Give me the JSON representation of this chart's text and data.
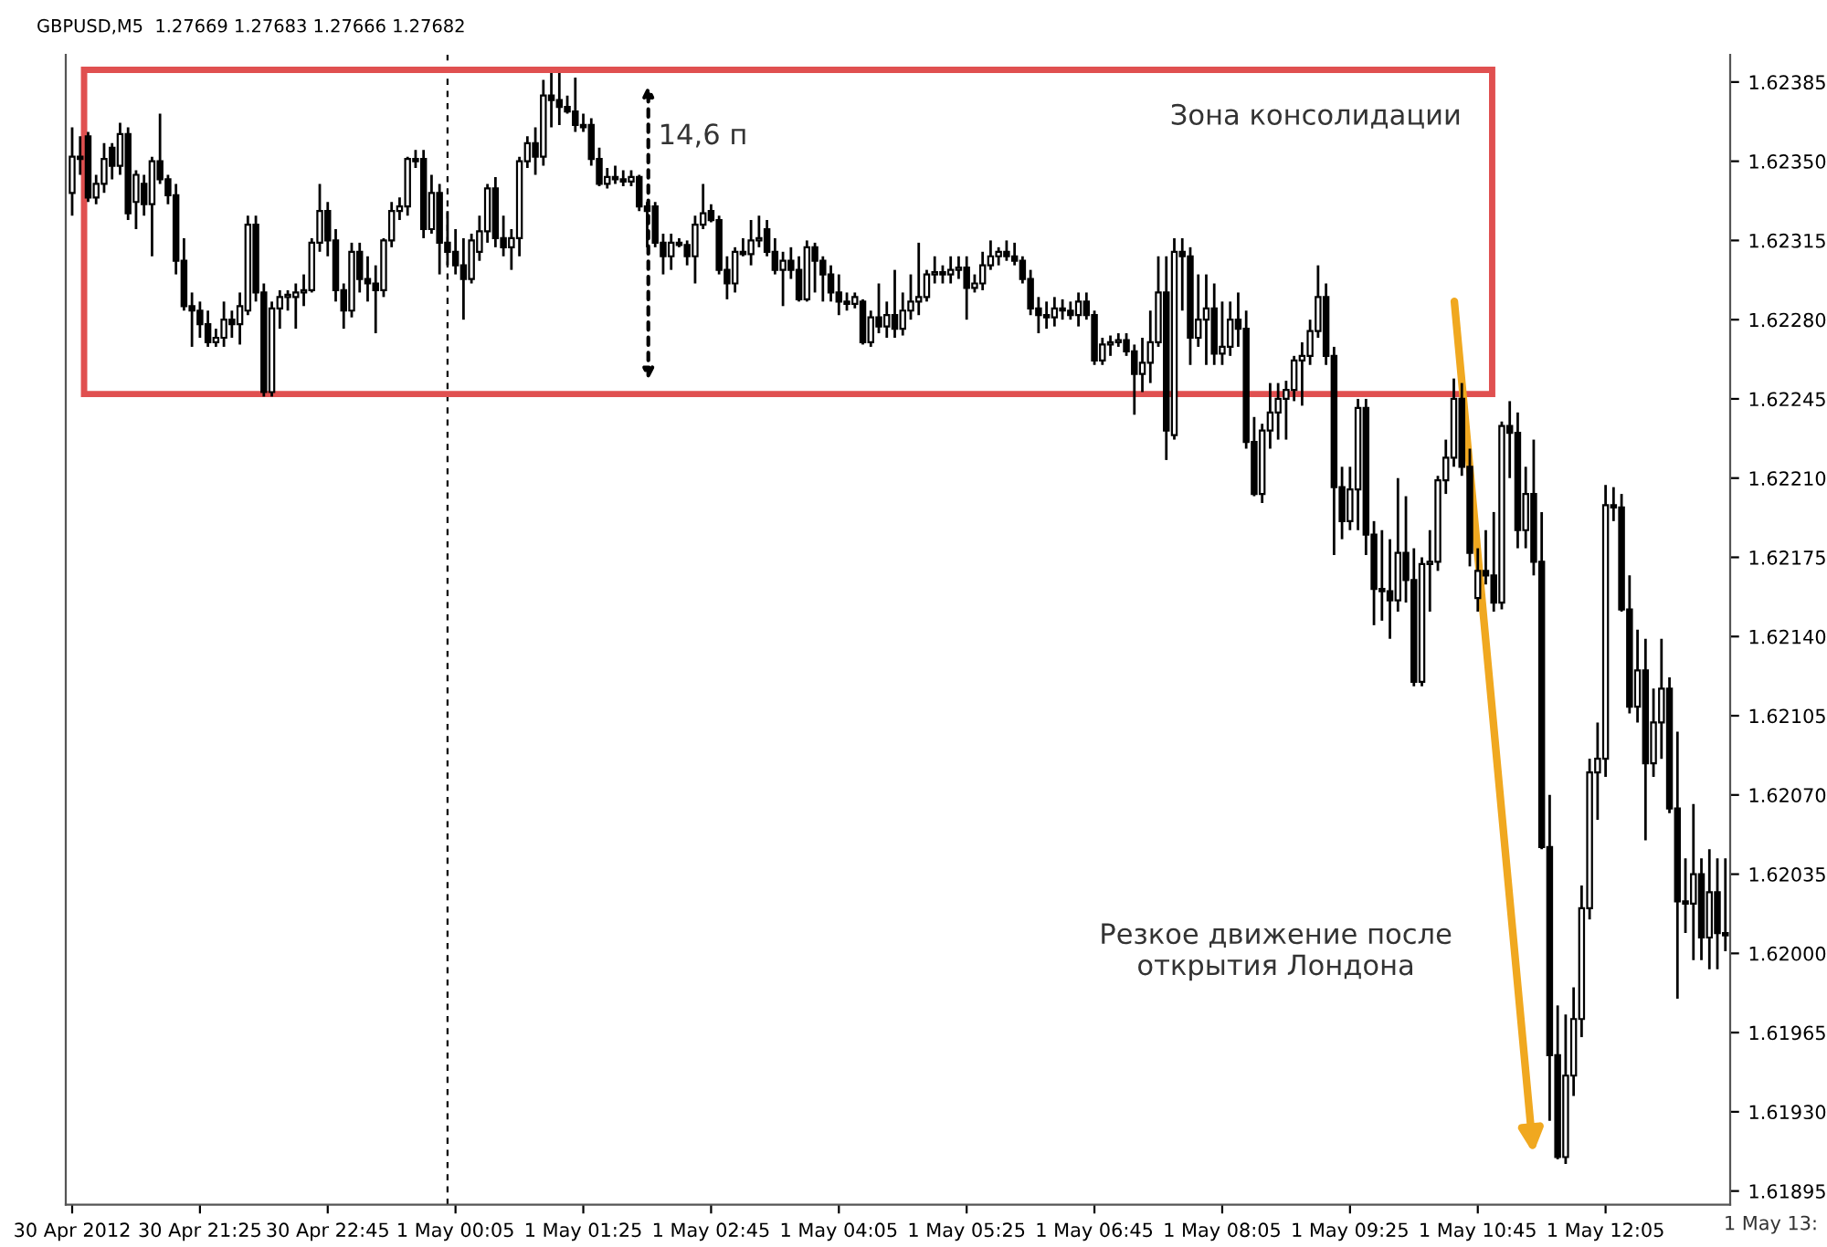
{
  "chart_data": {
    "type": "candlestick",
    "title": "GBPUSD,M5  1.27669 1.27683 1.27666 1.27682",
    "x": [
      "2012-04-30T20:05",
      "2012-04-30T20:10",
      "2012-04-30T20:15",
      "2012-04-30T20:20",
      "2012-04-30T20:25",
      "2012-04-30T20:30",
      "2012-04-30T20:35",
      "2012-04-30T20:40",
      "2012-04-30T20:45",
      "2012-04-30T20:50",
      "2012-04-30T20:55",
      "2012-04-30T21:00",
      "2012-04-30T21:05",
      "2012-04-30T21:10",
      "2012-04-30T21:15",
      "2012-04-30T21:20",
      "2012-04-30T21:25",
      "2012-04-30T21:30",
      "2012-04-30T21:35",
      "2012-04-30T21:40",
      "2012-04-30T21:45",
      "2012-04-30T21:50",
      "2012-04-30T21:55",
      "2012-04-30T22:00",
      "2012-04-30T22:05",
      "2012-04-30T22:10",
      "2012-04-30T22:15",
      "2012-04-30T22:20",
      "2012-04-30T22:25",
      "2012-04-30T22:30",
      "2012-04-30T22:35",
      "2012-04-30T22:40",
      "2012-04-30T22:45",
      "2012-04-30T22:50",
      "2012-04-30T22:55",
      "2012-04-30T23:00",
      "2012-04-30T23:05",
      "2012-04-30T23:10",
      "2012-04-30T23:15",
      "2012-04-30T23:20",
      "2012-04-30T23:25",
      "2012-04-30T23:30",
      "2012-04-30T23:35",
      "2012-04-30T23:40",
      "2012-04-30T23:45",
      "2012-04-30T23:50",
      "2012-04-30T23:55",
      "2012-05-01T00:00",
      "2012-05-01T00:05",
      "2012-05-01T00:10",
      "2012-05-01T00:15",
      "2012-05-01T00:20",
      "2012-05-01T00:25",
      "2012-05-01T00:30",
      "2012-05-01T00:35",
      "2012-05-01T00:40",
      "2012-05-01T00:45",
      "2012-05-01T00:50",
      "2012-05-01T00:55",
      "2012-05-01T01:00",
      "2012-05-01T01:05",
      "2012-05-01T01:10",
      "2012-05-01T01:15",
      "2012-05-01T01:20",
      "2012-05-01T01:25",
      "2012-05-01T01:30",
      "2012-05-01T01:35",
      "2012-05-01T01:40",
      "2012-05-01T01:45",
      "2012-05-01T01:50",
      "2012-05-01T01:55",
      "2012-05-01T02:00",
      "2012-05-01T02:05",
      "2012-05-01T02:10",
      "2012-05-01T02:15",
      "2012-05-01T02:20",
      "2012-05-01T02:25",
      "2012-05-01T02:30",
      "2012-05-01T02:35",
      "2012-05-01T02:40",
      "2012-05-01T02:45",
      "2012-05-01T02:50",
      "2012-05-01T02:55",
      "2012-05-01T03:00",
      "2012-05-01T03:05",
      "2012-05-01T03:10",
      "2012-05-01T03:15",
      "2012-05-01T03:20",
      "2012-05-01T03:25",
      "2012-05-01T03:30",
      "2012-05-01T03:35",
      "2012-05-01T03:40",
      "2012-05-01T03:45",
      "2012-05-01T03:50",
      "2012-05-01T03:55",
      "2012-05-01T04:00",
      "2012-05-01T04:05",
      "2012-05-01T04:10",
      "2012-05-01T04:15",
      "2012-05-01T04:20",
      "2012-05-01T04:25",
      "2012-05-01T04:30",
      "2012-05-01T04:35",
      "2012-05-01T04:40",
      "2012-05-01T04:45",
      "2012-05-01T04:50",
      "2012-05-01T04:55",
      "2012-05-01T05:00",
      "2012-05-01T05:05",
      "2012-05-01T05:10",
      "2012-05-01T05:15",
      "2012-05-01T05:20",
      "2012-05-01T05:25",
      "2012-05-01T05:30",
      "2012-05-01T05:35",
      "2012-05-01T05:40",
      "2012-05-01T05:45",
      "2012-05-01T05:50",
      "2012-05-01T05:55",
      "2012-05-01T06:00",
      "2012-05-01T06:05",
      "2012-05-01T06:10",
      "2012-05-01T06:15",
      "2012-05-01T06:20",
      "2012-05-01T06:25",
      "2012-05-01T06:30",
      "2012-05-01T06:35",
      "2012-05-01T06:40",
      "2012-05-01T06:45",
      "2012-05-01T06:50",
      "2012-05-01T06:55",
      "2012-05-01T07:00",
      "2012-05-01T07:05",
      "2012-05-01T07:10",
      "2012-05-01T07:15",
      "2012-05-01T07:20",
      "2012-05-01T07:25",
      "2012-05-01T07:30",
      "2012-05-01T07:35",
      "2012-05-01T07:40",
      "2012-05-01T07:45",
      "2012-05-01T07:50",
      "2012-05-01T07:55",
      "2012-05-01T08:00",
      "2012-05-01T08:05",
      "2012-05-01T08:10",
      "2012-05-01T08:15",
      "2012-05-01T08:20",
      "2012-05-01T08:25",
      "2012-05-01T08:30",
      "2012-05-01T08:35",
      "2012-05-01T08:40",
      "2012-05-01T08:45",
      "2012-05-01T08:50",
      "2012-05-01T08:55",
      "2012-05-01T09:00",
      "2012-05-01T09:05",
      "2012-05-01T09:10",
      "2012-05-01T09:15",
      "2012-05-01T09:20",
      "2012-05-01T09:25",
      "2012-05-01T09:30",
      "2012-05-01T09:35",
      "2012-05-01T09:40",
      "2012-05-01T09:45",
      "2012-05-01T09:50",
      "2012-05-01T09:55",
      "2012-05-01T10:00",
      "2012-05-01T10:05",
      "2012-05-01T10:10",
      "2012-05-01T10:15",
      "2012-05-01T10:20",
      "2012-05-01T10:25",
      "2012-05-01T10:30",
      "2012-05-01T10:35",
      "2012-05-01T10:40",
      "2012-05-01T10:45",
      "2012-05-01T10:50",
      "2012-05-01T10:55",
      "2012-05-01T11:00",
      "2012-05-01T11:05",
      "2012-05-01T11:10",
      "2012-05-01T11:15",
      "2012-05-01T11:20",
      "2012-05-01T11:25",
      "2012-05-01T11:30",
      "2012-05-01T11:35",
      "2012-05-01T11:40",
      "2012-05-01T11:45",
      "2012-05-01T11:50",
      "2012-05-01T11:55",
      "2012-05-01T12:00",
      "2012-05-01T12:05",
      "2012-05-01T12:10",
      "2012-05-01T12:15",
      "2012-05-01T12:20",
      "2012-05-01T12:25",
      "2012-05-01T12:30",
      "2012-05-01T12:35",
      "2012-05-01T12:40",
      "2012-05-01T12:45",
      "2012-05-01T12:50",
      "2012-05-01T12:55",
      "2012-05-01T13:00",
      "2012-05-01T13:05",
      "2012-05-01T13:10",
      "2012-05-01T13:15",
      "2012-05-01T13:20"
    ],
    "ohlc": [
      [
        1.62336,
        1.62365,
        1.62326,
        1.62352
      ],
      [
        1.62352,
        1.62361,
        1.62344,
        1.62351
      ],
      [
        1.62361,
        1.62363,
        1.62332,
        1.62334
      ],
      [
        1.62334,
        1.62344,
        1.62331,
        1.6234
      ],
      [
        1.6234,
        1.62358,
        1.62336,
        1.62351
      ],
      [
        1.62356,
        1.62358,
        1.62342,
        1.62348
      ],
      [
        1.62348,
        1.62367,
        1.62344,
        1.62362
      ],
      [
        1.62362,
        1.62365,
        1.62324,
        1.62327
      ],
      [
        1.62332,
        1.62346,
        1.6232,
        1.62344
      ],
      [
        1.6234,
        1.62344,
        1.62326,
        1.62331
      ],
      [
        1.62331,
        1.62352,
        1.62308,
        1.6235
      ],
      [
        1.6235,
        1.62371,
        1.6234,
        1.62342
      ],
      [
        1.62342,
        1.62344,
        1.62331,
        1.62335
      ],
      [
        1.62335,
        1.6234,
        1.623,
        1.62306
      ],
      [
        1.62306,
        1.62316,
        1.62284,
        1.62286
      ],
      [
        1.62286,
        1.62292,
        1.62268,
        1.62284
      ],
      [
        1.62284,
        1.62288,
        1.62272,
        1.62278
      ],
      [
        1.62278,
        1.62284,
        1.62268,
        1.6227
      ],
      [
        1.6227,
        1.62276,
        1.62268,
        1.62272
      ],
      [
        1.62272,
        1.62288,
        1.62268,
        1.6228
      ],
      [
        1.6228,
        1.62284,
        1.62272,
        1.62278
      ],
      [
        1.62278,
        1.62292,
        1.62269,
        1.62286
      ],
      [
        1.62284,
        1.62326,
        1.62282,
        1.62322
      ],
      [
        1.62322,
        1.62326,
        1.62288,
        1.62292
      ],
      [
        1.62292,
        1.62296,
        1.62246,
        1.62248
      ],
      [
        1.62248,
        1.62288,
        1.62246,
        1.62285
      ],
      [
        1.62285,
        1.62293,
        1.62276,
        1.6229
      ],
      [
        1.6229,
        1.62293,
        1.62284,
        1.62291
      ],
      [
        1.6229,
        1.62296,
        1.62276,
        1.62292
      ],
      [
        1.62292,
        1.623,
        1.62286,
        1.62293
      ],
      [
        1.62293,
        1.62316,
        1.62292,
        1.62314
      ],
      [
        1.62314,
        1.6234,
        1.6231,
        1.62328
      ],
      [
        1.62328,
        1.62332,
        1.62308,
        1.62315
      ],
      [
        1.62315,
        1.6232,
        1.62288,
        1.62293
      ],
      [
        1.62293,
        1.62296,
        1.62276,
        1.62284
      ],
      [
        1.62284,
        1.62314,
        1.62281,
        1.6231
      ],
      [
        1.6231,
        1.62314,
        1.62292,
        1.62298
      ],
      [
        1.62298,
        1.62308,
        1.62288,
        1.62296
      ],
      [
        1.62296,
        1.62304,
        1.62274,
        1.62293
      ],
      [
        1.62293,
        1.62316,
        1.6229,
        1.62315
      ],
      [
        1.62315,
        1.62332,
        1.62312,
        1.62328
      ],
      [
        1.62328,
        1.62334,
        1.62324,
        1.6233
      ],
      [
        1.6233,
        1.62352,
        1.62326,
        1.62351
      ],
      [
        1.62351,
        1.62355,
        1.62347,
        1.6235
      ],
      [
        1.62351,
        1.62355,
        1.62316,
        1.6232
      ],
      [
        1.6232,
        1.62344,
        1.62318,
        1.62336
      ],
      [
        1.62336,
        1.6234,
        1.623,
        1.62314
      ],
      [
        1.62314,
        1.62328,
        1.62304,
        1.6231
      ],
      [
        1.6231,
        1.6232,
        1.623,
        1.62304
      ],
      [
        1.62304,
        1.62316,
        1.6228,
        1.62298
      ],
      [
        1.62298,
        1.62318,
        1.62296,
        1.62315
      ],
      [
        1.6231,
        1.62326,
        1.62306,
        1.62319
      ],
      [
        1.62319,
        1.6234,
        1.62314,
        1.62338
      ],
      [
        1.62338,
        1.62343,
        1.62312,
        1.62316
      ],
      [
        1.62316,
        1.62326,
        1.62308,
        1.62312
      ],
      [
        1.62312,
        1.6232,
        1.62302,
        1.62316
      ],
      [
        1.62316,
        1.62352,
        1.62308,
        1.6235
      ],
      [
        1.6235,
        1.62361,
        1.62347,
        1.62358
      ],
      [
        1.62358,
        1.62365,
        1.62344,
        1.62352
      ],
      [
        1.62352,
        1.62386,
        1.62348,
        1.62379
      ],
      [
        1.62379,
        1.62389,
        1.62365,
        1.62377
      ],
      [
        1.62377,
        1.62389,
        1.62366,
        1.62374
      ],
      [
        1.62374,
        1.62379,
        1.62371,
        1.62372
      ],
      [
        1.62372,
        1.62387,
        1.62363,
        1.62366
      ],
      [
        1.62366,
        1.62371,
        1.62363,
        1.62365
      ],
      [
        1.62366,
        1.62369,
        1.62348,
        1.62351
      ],
      [
        1.62351,
        1.62356,
        1.62339,
        1.6234
      ],
      [
        1.6234,
        1.62347,
        1.62338,
        1.62343
      ],
      [
        1.62343,
        1.62348,
        1.6234,
        1.62342
      ],
      [
        1.62342,
        1.62346,
        1.62339,
        1.62341
      ],
      [
        1.62341,
        1.62346,
        1.62339,
        1.62343
      ],
      [
        1.62343,
        1.62344,
        1.62328,
        1.6233
      ],
      [
        1.6233,
        1.62332,
        1.62312,
        1.62328
      ],
      [
        1.6233,
        1.62332,
        1.62312,
        1.62314
      ],
      [
        1.62314,
        1.62318,
        1.623,
        1.62308
      ],
      [
        1.62308,
        1.62318,
        1.62302,
        1.62314
      ],
      [
        1.62314,
        1.62316,
        1.62312,
        1.62313
      ],
      [
        1.62313,
        1.62315,
        1.62304,
        1.62308
      ],
      [
        1.62308,
        1.62326,
        1.62296,
        1.62322
      ],
      [
        1.62322,
        1.6234,
        1.6232,
        1.62327
      ],
      [
        1.62328,
        1.62331,
        1.62323,
        1.62324
      ],
      [
        1.62324,
        1.62326,
        1.623,
        1.62302
      ],
      [
        1.62302,
        1.62308,
        1.62289,
        1.62296
      ],
      [
        1.62296,
        1.62312,
        1.62292,
        1.6231
      ],
      [
        1.6231,
        1.62316,
        1.62308,
        1.62309
      ],
      [
        1.62309,
        1.62324,
        1.62304,
        1.62315
      ],
      [
        1.62315,
        1.62326,
        1.62312,
        1.62316
      ],
      [
        1.6232,
        1.62324,
        1.62308,
        1.6231
      ],
      [
        1.6231,
        1.62316,
        1.623,
        1.62302
      ],
      [
        1.62302,
        1.6231,
        1.62286,
        1.62306
      ],
      [
        1.62306,
        1.62312,
        1.62298,
        1.62302
      ],
      [
        1.62302,
        1.62308,
        1.62288,
        1.62289
      ],
      [
        1.62289,
        1.62315,
        1.62288,
        1.62312
      ],
      [
        1.62312,
        1.62314,
        1.62292,
        1.62306
      ],
      [
        1.62306,
        1.62308,
        1.62288,
        1.623
      ],
      [
        1.623,
        1.62304,
        1.62288,
        1.62292
      ],
      [
        1.62292,
        1.623,
        1.62282,
        1.62288
      ],
      [
        1.62288,
        1.62292,
        1.62284,
        1.62287
      ],
      [
        1.62287,
        1.62292,
        1.62285,
        1.6229
      ],
      [
        1.62288,
        1.62289,
        1.62269,
        1.6227
      ],
      [
        1.6227,
        1.62284,
        1.62268,
        1.62281
      ],
      [
        1.62281,
        1.62296,
        1.62274,
        1.62277
      ],
      [
        1.62277,
        1.62288,
        1.62272,
        1.62282
      ],
      [
        1.62282,
        1.62302,
        1.62272,
        1.62276
      ],
      [
        1.62276,
        1.62292,
        1.62273,
        1.62284
      ],
      [
        1.62284,
        1.623,
        1.6228,
        1.62288
      ],
      [
        1.62288,
        1.62314,
        1.62282,
        1.6229
      ],
      [
        1.6229,
        1.62302,
        1.62288,
        1.623
      ],
      [
        1.623,
        1.62308,
        1.62296,
        1.62301
      ],
      [
        1.62301,
        1.62304,
        1.62296,
        1.623
      ],
      [
        1.623,
        1.62308,
        1.62296,
        1.62302
      ],
      [
        1.62302,
        1.62308,
        1.62298,
        1.62303
      ],
      [
        1.62303,
        1.62308,
        1.6228,
        1.62294
      ],
      [
        1.62294,
        1.623,
        1.62292,
        1.62296
      ],
      [
        1.62296,
        1.6231,
        1.62293,
        1.62304
      ],
      [
        1.62304,
        1.62315,
        1.62302,
        1.62308
      ],
      [
        1.62308,
        1.62312,
        1.62304,
        1.6231
      ],
      [
        1.6231,
        1.62315,
        1.62306,
        1.62308
      ],
      [
        1.62308,
        1.62314,
        1.62304,
        1.62306
      ],
      [
        1.62306,
        1.62308,
        1.62296,
        1.62298
      ],
      [
        1.62298,
        1.62302,
        1.62282,
        1.62285
      ],
      [
        1.62285,
        1.6229,
        1.62274,
        1.62282
      ],
      [
        1.62282,
        1.62288,
        1.62276,
        1.62281
      ],
      [
        1.62281,
        1.6229,
        1.62277,
        1.62285
      ],
      [
        1.62285,
        1.62289,
        1.6228,
        1.62284
      ],
      [
        1.62284,
        1.62288,
        1.6228,
        1.62282
      ],
      [
        1.62282,
        1.62292,
        1.62277,
        1.62288
      ],
      [
        1.62288,
        1.62292,
        1.6228,
        1.62282
      ],
      [
        1.62282,
        1.62284,
        1.6226,
        1.62262
      ],
      [
        1.62262,
        1.62272,
        1.6226,
        1.62269
      ],
      [
        1.62269,
        1.62273,
        1.62264,
        1.6227
      ],
      [
        1.6227,
        1.62274,
        1.62268,
        1.62271
      ],
      [
        1.62271,
        1.62274,
        1.62264,
        1.62266
      ],
      [
        1.62266,
        1.62269,
        1.62238,
        1.62256
      ],
      [
        1.62256,
        1.62272,
        1.62248,
        1.62261
      ],
      [
        1.62261,
        1.62284,
        1.62252,
        1.6227
      ],
      [
        1.6227,
        1.62308,
        1.62268,
        1.62292
      ],
      [
        1.62292,
        1.62308,
        1.62218,
        1.62231
      ],
      [
        1.62229,
        1.62316,
        1.62227,
        1.6231
      ],
      [
        1.6231,
        1.62316,
        1.62284,
        1.62308
      ],
      [
        1.62308,
        1.62312,
        1.6226,
        1.62272
      ],
      [
        1.62272,
        1.623,
        1.62268,
        1.6228
      ],
      [
        1.6228,
        1.623,
        1.6226,
        1.62285
      ],
      [
        1.62285,
        1.62296,
        1.6226,
        1.62265
      ],
      [
        1.62265,
        1.62288,
        1.6226,
        1.62268
      ],
      [
        1.62268,
        1.62288,
        1.62264,
        1.6228
      ],
      [
        1.6228,
        1.62292,
        1.62268,
        1.62276
      ],
      [
        1.62276,
        1.62284,
        1.62223,
        1.62226
      ],
      [
        1.62226,
        1.62237,
        1.62202,
        1.62203
      ],
      [
        1.62203,
        1.62234,
        1.62199,
        1.62231
      ],
      [
        1.62231,
        1.62252,
        1.62223,
        1.62239
      ],
      [
        1.62239,
        1.62252,
        1.62227,
        1.62245
      ],
      [
        1.62245,
        1.62253,
        1.62227,
        1.62249
      ],
      [
        1.62249,
        1.62264,
        1.62244,
        1.62262
      ],
      [
        1.62262,
        1.6227,
        1.62242,
        1.62264
      ],
      [
        1.62264,
        1.6228,
        1.6226,
        1.62275
      ],
      [
        1.62275,
        1.62304,
        1.62272,
        1.6229
      ],
      [
        1.6229,
        1.62296,
        1.6226,
        1.62264
      ],
      [
        1.62264,
        1.62268,
        1.62176,
        1.62206
      ],
      [
        1.62206,
        1.62215,
        1.62183,
        1.62191
      ],
      [
        1.62191,
        1.62215,
        1.62187,
        1.62205
      ],
      [
        1.62205,
        1.62245,
        1.62187,
        1.62241
      ],
      [
        1.62241,
        1.62245,
        1.62176,
        1.62185
      ],
      [
        1.62185,
        1.62191,
        1.62145,
        1.62161
      ],
      [
        1.62161,
        1.62187,
        1.62147,
        1.6216
      ],
      [
        1.6216,
        1.62183,
        1.62139,
        1.62156
      ],
      [
        1.62156,
        1.6221,
        1.62151,
        1.62177
      ],
      [
        1.62177,
        1.62202,
        1.62155,
        1.62165
      ],
      [
        1.62165,
        1.62179,
        1.62118,
        1.6212
      ],
      [
        1.6212,
        1.62175,
        1.62118,
        1.62172
      ],
      [
        1.62172,
        1.62187,
        1.62151,
        1.62173
      ],
      [
        1.62173,
        1.62211,
        1.62169,
        1.62209
      ],
      [
        1.62209,
        1.62227,
        1.62203,
        1.62219
      ],
      [
        1.62219,
        1.62254,
        1.62215,
        1.62245
      ],
      [
        1.62245,
        1.62252,
        1.62211,
        1.62215
      ],
      [
        1.62215,
        1.62223,
        1.62171,
        1.62177
      ],
      [
        1.62157,
        1.62179,
        1.62151,
        1.62169
      ],
      [
        1.62169,
        1.62187,
        1.62163,
        1.62167
      ],
      [
        1.62167,
        1.62195,
        1.62151,
        1.62155
      ],
      [
        1.62155,
        1.62235,
        1.62152,
        1.62233
      ],
      [
        1.62233,
        1.62244,
        1.6221,
        1.6223
      ],
      [
        1.6223,
        1.62239,
        1.62179,
        1.62187
      ],
      [
        1.62187,
        1.62215,
        1.62179,
        1.62203
      ],
      [
        1.62203,
        1.62227,
        1.62167,
        1.62173
      ],
      [
        1.62173,
        1.62195,
        1.62046,
        1.62047
      ],
      [
        1.62047,
        1.6207,
        1.61926,
        1.61955
      ],
      [
        1.61955,
        1.61977,
        1.61909,
        1.6191
      ],
      [
        1.6191,
        1.61973,
        1.61907,
        1.61946
      ],
      [
        1.61946,
        1.61985,
        1.61937,
        1.61971
      ],
      [
        1.61971,
        1.6203,
        1.61963,
        1.6202
      ],
      [
        1.6202,
        1.62086,
        1.62015,
        1.6208
      ],
      [
        1.6208,
        1.62102,
        1.62059,
        1.62086
      ],
      [
        1.62086,
        1.62207,
        1.62078,
        1.62198
      ],
      [
        1.62198,
        1.62206,
        1.62191,
        1.62197
      ],
      [
        1.62197,
        1.62203,
        1.62151,
        1.62152
      ],
      [
        1.62152,
        1.62167,
        1.62106,
        1.62109
      ],
      [
        1.62109,
        1.62143,
        1.62102,
        1.62125
      ],
      [
        1.62125,
        1.62139,
        1.6205,
        1.62084
      ],
      [
        1.62084,
        1.62117,
        1.62078,
        1.62102
      ],
      [
        1.62102,
        1.62139,
        1.62086,
        1.62117
      ],
      [
        1.62117,
        1.62122,
        1.62062,
        1.62064
      ],
      [
        1.62064,
        1.62098,
        1.6198,
        1.62023
      ],
      [
        1.62023,
        1.62042,
        1.62009,
        1.62022
      ],
      [
        1.62022,
        1.62066,
        1.61997,
        1.62035
      ],
      [
        1.62035,
        1.62042,
        1.61997,
        1.62007
      ],
      [
        1.62007,
        1.62046,
        1.61993,
        1.62027
      ],
      [
        1.62027,
        1.62042,
        1.61993,
        1.62009
      ],
      [
        1.62009,
        1.62042,
        1.62001,
        1.62008
      ]
    ],
    "color": "#000000",
    "xlim": [
      "2012-04-30T20:01",
      "2012-05-01T13:23"
    ],
    "xticks": [
      {
        "value": "2012-04-30T20:05",
        "label": "30 Apr 2012"
      },
      {
        "value": "2012-04-30T21:25",
        "label": "30 Apr 21:25"
      },
      {
        "value": "2012-04-30T22:45",
        "label": "30 Apr 22:45"
      },
      {
        "value": "2012-05-01T00:05",
        "label": "1 May 00:05"
      },
      {
        "value": "2012-05-01T01:25",
        "label": "1 May 01:25"
      },
      {
        "value": "2012-05-01T02:45",
        "label": "1 May 02:45"
      },
      {
        "value": "2012-05-01T04:05",
        "label": "1 May 04:05"
      },
      {
        "value": "2012-05-01T05:25",
        "label": "1 May 05:25"
      },
      {
        "value": "2012-05-01T06:45",
        "label": "1 May 06:45"
      },
      {
        "value": "2012-05-01T08:05",
        "label": "1 May 08:05"
      },
      {
        "value": "2012-05-01T09:25",
        "label": "1 May 09:25"
      },
      {
        "value": "2012-05-01T10:45",
        "label": "1 May 10:45"
      },
      {
        "value": "2012-05-01T12:05",
        "label": "1 May 12:05"
      }
    ],
    "ylim": [
      1.61889,
      1.62397
    ],
    "yticks": [
      1.62385,
      {
        "value": 1.6235,
        "label": "1.62350"
      },
      1.62315,
      {
        "value": 1.6228,
        "label": "1.62280"
      },
      1.62245,
      {
        "value": 1.6221,
        "label": "1.62210"
      },
      1.62175,
      {
        "value": 1.6214,
        "label": "1.62140"
      },
      1.62105,
      {
        "value": 1.6207,
        "label": "1.62070"
      },
      1.62035,
      {
        "value": 1.62,
        "label": "1.62000"
      },
      1.61965,
      {
        "value": 1.6193,
        "label": "1.61930"
      },
      1.61895
    ],
    "ref_lines": [
      {
        "axis": "x",
        "value": "2012-05-01T00:00",
        "color": "#000000",
        "line_style": "dashed"
      }
    ],
    "annotations": [
      "Зона консолидации",
      "14,6 п",
      "Резкое движение после\nоткрытия Лондона",
      "1 May 13:"
    ],
    "grid": false,
    "legend": false
  }
}
